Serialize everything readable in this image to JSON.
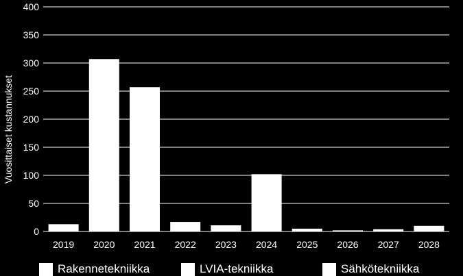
{
  "chart_data": {
    "type": "bar",
    "title": "",
    "xlabel": "",
    "ylabel": "Vuosittaiset kustannukset",
    "ylim": [
      0,
      400
    ],
    "yticks": [
      0,
      50,
      100,
      150,
      200,
      250,
      300,
      350,
      400
    ],
    "grid": true,
    "legend_position": "bottom",
    "categories": [
      "2019",
      "2020",
      "2021",
      "2022",
      "2023",
      "2024",
      "2025",
      "2026",
      "2027",
      "2028"
    ],
    "values": [
      13,
      307,
      257,
      17,
      11,
      102,
      5,
      2,
      4,
      10
    ],
    "legend": [
      "Rakennetekniikka",
      "LVIA-tekniikka",
      "Sähkötekniikka"
    ],
    "colors": {
      "background": "#000000",
      "bars": "#ffffff",
      "grid": "#ffffff",
      "text": "#ffffff"
    }
  }
}
